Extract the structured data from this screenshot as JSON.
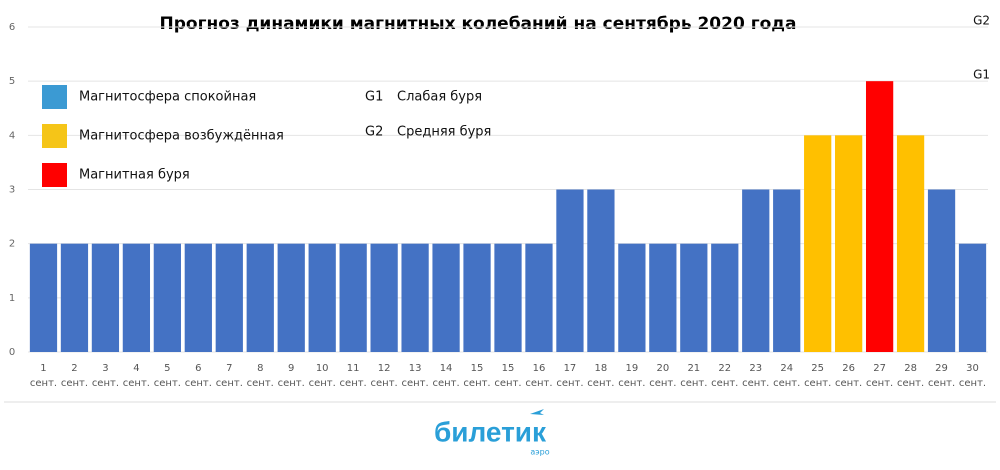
{
  "chart_data": {
    "type": "bar",
    "title": "Прогноз динамики магнитных колебаний на сентябрь 2020 года",
    "categories": [
      "1",
      "2",
      "3",
      "4",
      "5",
      "6",
      "7",
      "8",
      "9",
      "10",
      "11",
      "12",
      "13",
      "14",
      "15",
      "15",
      "16",
      "17",
      "18",
      "19",
      "20",
      "21",
      "22",
      "23",
      "24",
      "25",
      "26",
      "27",
      "28",
      "29",
      "30"
    ],
    "category_sublabel": "сент.",
    "values": [
      2,
      2,
      2,
      2,
      2,
      2,
      2,
      2,
      2,
      2,
      2,
      2,
      2,
      2,
      2,
      2,
      2,
      3,
      3,
      2,
      2,
      2,
      2,
      3,
      3,
      4,
      4,
      5,
      4,
      3,
      2
    ],
    "colors": [
      "#4472c4",
      "#4472c4",
      "#4472c4",
      "#4472c4",
      "#4472c4",
      "#4472c4",
      "#4472c4",
      "#4472c4",
      "#4472c4",
      "#4472c4",
      "#4472c4",
      "#4472c4",
      "#4472c4",
      "#4472c4",
      "#4472c4",
      "#4472c4",
      "#4472c4",
      "#4472c4",
      "#4472c4",
      "#4472c4",
      "#4472c4",
      "#4472c4",
      "#4472c4",
      "#4472c4",
      "#4472c4",
      "#ffc000",
      "#ffc000",
      "#ff0000",
      "#ffc000",
      "#4472c4",
      "#4472c4"
    ],
    "ylim": [
      0,
      6
    ],
    "yticks": [
      0,
      1,
      2,
      3,
      4,
      5,
      6
    ],
    "grid": true,
    "legend": [
      {
        "name": "Магнитосфера спокойная",
        "color": "#3b9ad3"
      },
      {
        "name": "Магнитосфера возбуждённая",
        "color": "#f5c518"
      },
      {
        "name": "Магнитная буря",
        "color": "#ff0000"
      }
    ],
    "scale_notes": [
      {
        "code": "G1",
        "text": "Слабая буря"
      },
      {
        "code": "G2",
        "text": "Средняя буря"
      }
    ],
    "level_annotations": [
      {
        "value": 6,
        "label": "G2"
      },
      {
        "value": 5,
        "label": "G1"
      }
    ]
  },
  "logo": {
    "main": "билетик",
    "sub": "аэро"
  }
}
